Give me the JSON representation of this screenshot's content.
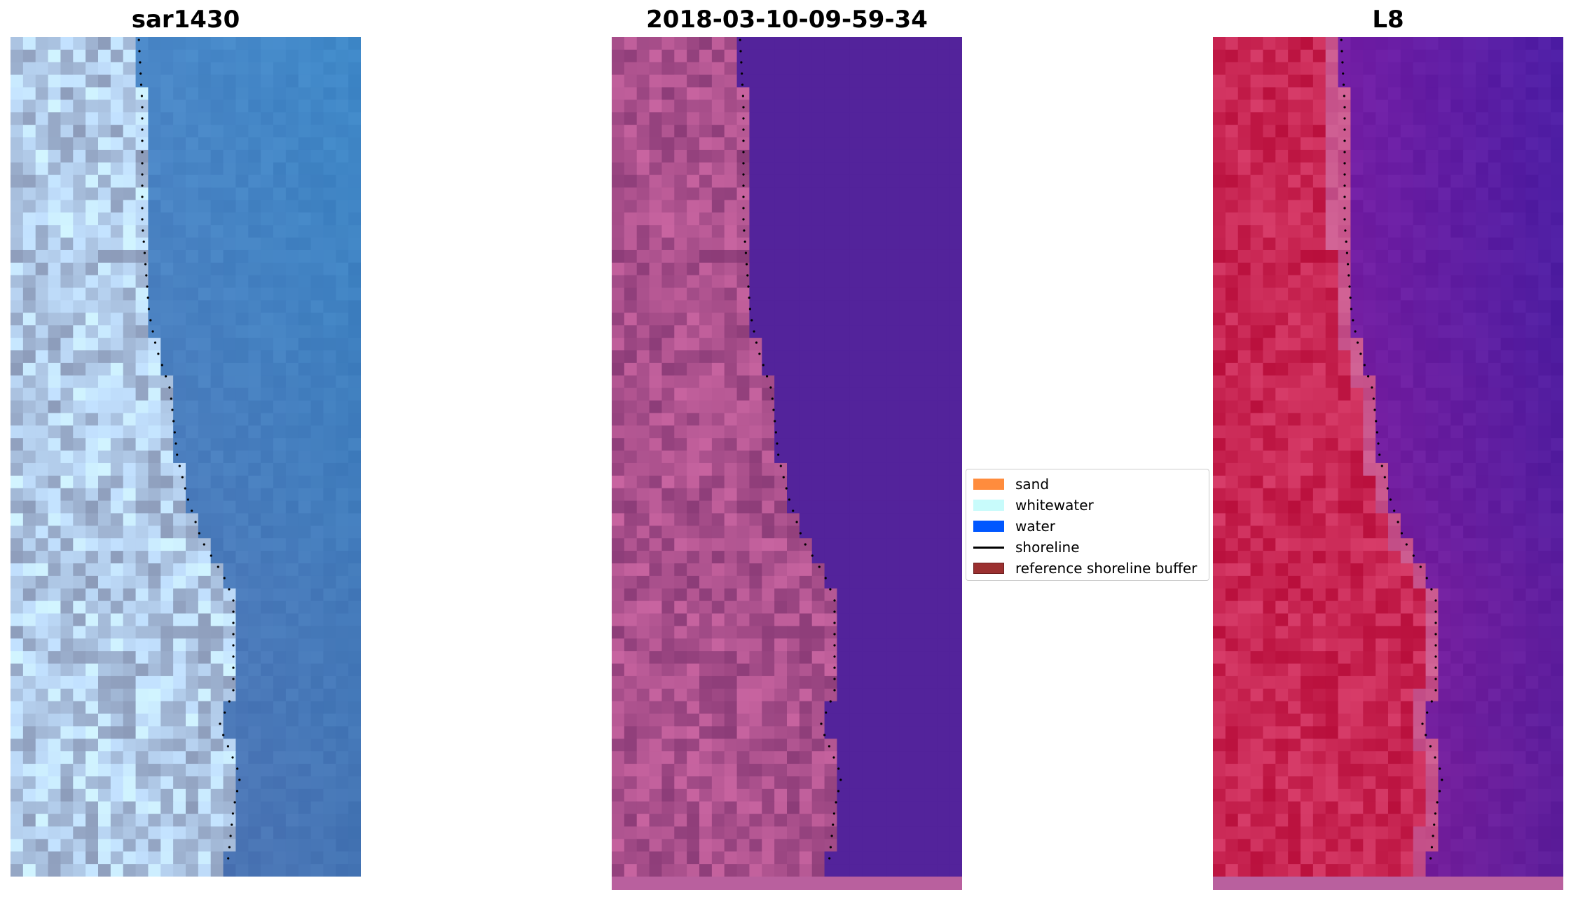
{
  "panels": [
    {
      "title": "sar1430",
      "style": "rgb"
    },
    {
      "title": "2018-03-10-09-59-34",
      "style": "classified"
    },
    {
      "title": "L8",
      "style": "falsecolor"
    }
  ],
  "legend": {
    "items": [
      {
        "label": "sand",
        "kind": "patch",
        "color": "#ff8c3d"
      },
      {
        "label": "whitewater",
        "kind": "patch",
        "color": "#c8fbfb"
      },
      {
        "label": "water",
        "kind": "patch",
        "color": "#0057ff"
      },
      {
        "label": "shoreline",
        "kind": "line",
        "color": "#000000"
      },
      {
        "label": "reference shoreline buffer",
        "kind": "patch",
        "color": "#9b3030",
        "edge": "#6e1f1f"
      }
    ]
  },
  "colors": {
    "sar_water": "#4d7fbf",
    "sar_land": "#c2cee0",
    "classified_water": "#53239b",
    "classified_land": "#9e4a8e",
    "classified_bottom_strip": "#b9609e",
    "l8_water": "#6a1aa0",
    "l8_land": "#c41448",
    "shoreline_dots": "#000000"
  },
  "shoreline_profile": [
    [
      0.0,
      0.35
    ],
    [
      0.08,
      0.36
    ],
    [
      0.22,
      0.36
    ],
    [
      0.33,
      0.38
    ],
    [
      0.37,
      0.4
    ],
    [
      0.42,
      0.44
    ],
    [
      0.5,
      0.46
    ],
    [
      0.55,
      0.49
    ],
    [
      0.6,
      0.53
    ],
    [
      0.64,
      0.59
    ],
    [
      0.67,
      0.62
    ],
    [
      0.72,
      0.62
    ],
    [
      0.78,
      0.62
    ],
    [
      0.82,
      0.58
    ],
    [
      0.84,
      0.6
    ],
    [
      0.88,
      0.64
    ],
    [
      0.92,
      0.62
    ],
    [
      1.0,
      0.6
    ]
  ]
}
